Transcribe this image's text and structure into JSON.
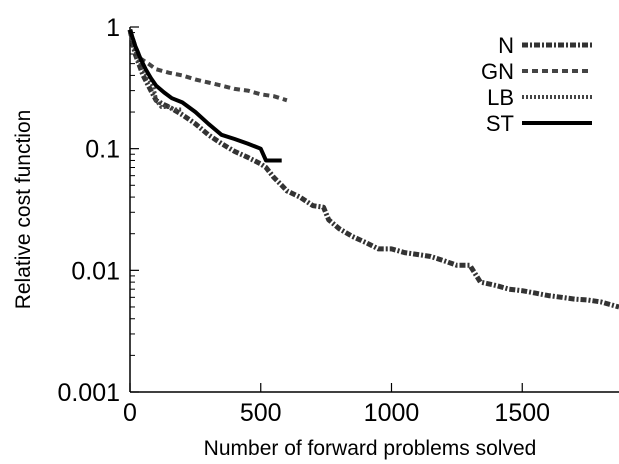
{
  "chart_data": {
    "type": "line",
    "title": "",
    "xlabel": "Number of forward problems solved",
    "ylabel": "Relative cost function",
    "yscale": "log",
    "xlim": [
      0,
      1870
    ],
    "ylim": [
      0.001,
      1
    ],
    "xticks": [
      0,
      500,
      1000,
      1500
    ],
    "xtick_labels": [
      "0",
      "500",
      "1000",
      "1500"
    ],
    "yticks": [
      0.001,
      0.01,
      0.1,
      1
    ],
    "ytick_labels": [
      "0.001",
      "0.01",
      "0.1",
      "1"
    ],
    "grid": false,
    "legend_position": "top-right",
    "series": [
      {
        "name": "N",
        "style": "dash-dot",
        "x": [
          0,
          20,
          50,
          80,
          100,
          130,
          150,
          200,
          250,
          300,
          350,
          400,
          450,
          500,
          520,
          550,
          580,
          600,
          650,
          700,
          740,
          760,
          800,
          850,
          900,
          950,
          1000,
          1050,
          1100,
          1150,
          1200,
          1250,
          1300,
          1340,
          1400,
          1450,
          1500,
          1550,
          1600,
          1650,
          1700,
          1750,
          1800,
          1870
        ],
        "y": [
          0.95,
          0.6,
          0.4,
          0.3,
          0.25,
          0.23,
          0.22,
          0.19,
          0.16,
          0.13,
          0.11,
          0.095,
          0.085,
          0.075,
          0.07,
          0.058,
          0.05,
          0.045,
          0.04,
          0.034,
          0.033,
          0.026,
          0.022,
          0.019,
          0.017,
          0.015,
          0.015,
          0.014,
          0.0135,
          0.013,
          0.012,
          0.011,
          0.011,
          0.008,
          0.0075,
          0.007,
          0.0068,
          0.0065,
          0.0062,
          0.006,
          0.0058,
          0.0057,
          0.0055,
          0.005
        ]
      },
      {
        "name": "GN",
        "style": "dashed",
        "x": [
          0,
          20,
          40,
          70,
          100,
          150,
          200,
          250,
          300,
          350,
          400,
          450,
          500,
          550,
          600
        ],
        "y": [
          0.95,
          0.7,
          0.55,
          0.5,
          0.45,
          0.42,
          0.4,
          0.37,
          0.35,
          0.33,
          0.31,
          0.3,
          0.28,
          0.27,
          0.25
        ]
      },
      {
        "name": "LB",
        "style": "dotted",
        "x": [
          0,
          15,
          30,
          50,
          70,
          90,
          100,
          120,
          150,
          170,
          200
        ],
        "y": [
          0.9,
          0.7,
          0.55,
          0.45,
          0.38,
          0.32,
          0.25,
          0.22,
          0.22,
          0.21,
          0.21
        ]
      },
      {
        "name": "ST",
        "style": "solid",
        "x": [
          0,
          20,
          40,
          60,
          80,
          100,
          130,
          160,
          200,
          250,
          300,
          350,
          400,
          450,
          500,
          520,
          550,
          580
        ],
        "y": [
          0.95,
          0.7,
          0.55,
          0.45,
          0.38,
          0.33,
          0.29,
          0.26,
          0.24,
          0.2,
          0.16,
          0.13,
          0.12,
          0.11,
          0.1,
          0.08,
          0.08,
          0.08
        ]
      }
    ]
  }
}
